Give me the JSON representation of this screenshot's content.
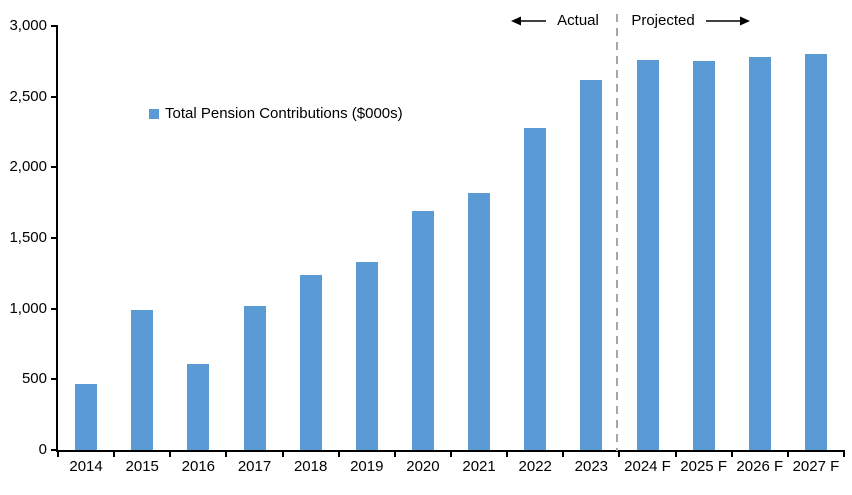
{
  "chart_data": {
    "type": "bar",
    "title": "",
    "legend_label": "Total Pension Contributions ($000s)",
    "categories": [
      "2014",
      "2015",
      "2016",
      "2017",
      "2018",
      "2019",
      "2020",
      "2021",
      "2022",
      "2023",
      "2024 F",
      "2025 F",
      "2026 F",
      "2027 F"
    ],
    "values": [
      470,
      990,
      610,
      1020,
      1240,
      1330,
      1690,
      1820,
      2280,
      2620,
      2760,
      2750,
      2780,
      2800
    ],
    "xlabel": "",
    "ylabel": "",
    "ylim": [
      0,
      3000
    ],
    "ytick_step": 500,
    "ytick_labels": [
      "0",
      "500",
      "1,000",
      "1,500",
      "2,000",
      "2,500",
      "3,000"
    ],
    "grid": false,
    "legend_position": "inside-upper-left",
    "bar_color": "#5B9BD5",
    "axis_color": "#000000",
    "divider_color": "#A6A6A6",
    "annotations": {
      "actual_label": "Actual",
      "projected_label": "Projected",
      "divider_between": [
        "2023",
        "2024 F"
      ]
    }
  }
}
